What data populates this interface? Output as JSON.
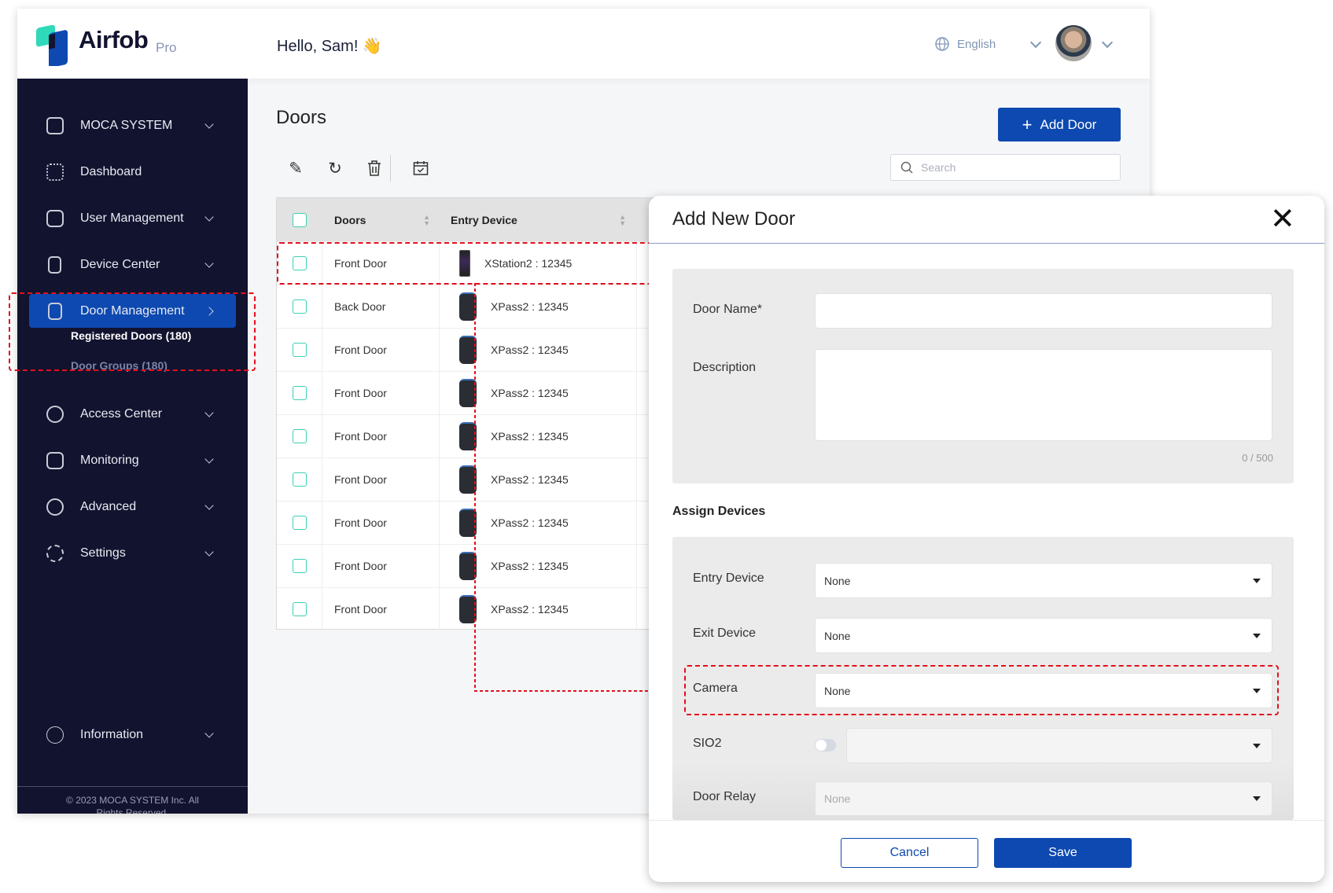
{
  "app": {
    "brand": "Airfob",
    "brand_tier": "Pro",
    "greeting": "Hello, Sam! 👋"
  },
  "header": {
    "language": "English",
    "icons": [
      "globe-icon",
      "chevron-down-icon",
      "avatar",
      "chevron-down-icon"
    ]
  },
  "sidebar": {
    "items": [
      {
        "label": "MOCA SYSTEM",
        "icon": "building-icon",
        "expandable": true
      },
      {
        "label": "Dashboard",
        "icon": "grid-icon",
        "expandable": false
      },
      {
        "label": "User Management",
        "icon": "user-icon",
        "expandable": true
      },
      {
        "label": "Device Center",
        "icon": "device-icon",
        "expandable": true
      },
      {
        "label": "Door Management",
        "icon": "door-icon",
        "active": true
      },
      {
        "label": "Access Center",
        "icon": "key-icon",
        "expandable": true
      },
      {
        "label": "Monitoring",
        "icon": "monitor-user-icon",
        "expandable": true
      },
      {
        "label": "Advanced",
        "icon": "advanced-icon",
        "expandable": true
      },
      {
        "label": "Settings",
        "icon": "gear-icon",
        "expandable": true
      },
      {
        "label": "Information",
        "icon": "info-icon",
        "expandable": true
      }
    ],
    "subitems": [
      {
        "label": "Registered Doors  (180)",
        "active": true
      },
      {
        "label": "Door Groups  (180)",
        "active": false
      }
    ],
    "copyright_line1": "© 2023 MOCA SYSTEM Inc. All",
    "copyright_line2": "Rights Reserved."
  },
  "main": {
    "title": "Doors",
    "add_button": "Add Door",
    "search_placeholder": "Search",
    "toolbar": [
      "edit-icon",
      "refresh-icon",
      "trash-icon",
      "calendar-check-icon"
    ],
    "table": {
      "columns": [
        "Doors",
        "Entry Device"
      ],
      "rows": [
        {
          "door": "Front Door",
          "device": "XStation2 : 12345",
          "type": "xstation"
        },
        {
          "door": "Back Door",
          "device": "XPass2 : 12345",
          "type": "xpass"
        },
        {
          "door": "Front Door",
          "device": "XPass2 : 12345",
          "type": "xpass"
        },
        {
          "door": "Front Door",
          "device": "XPass2 : 12345",
          "type": "xpass"
        },
        {
          "door": "Front Door",
          "device": "XPass2 : 12345",
          "type": "xpass"
        },
        {
          "door": "Front Door",
          "device": "XPass2 : 12345",
          "type": "xpass"
        },
        {
          "door": "Front Door",
          "device": "XPass2 : 12345",
          "type": "xpass"
        },
        {
          "door": "Front Door",
          "device": "XPass2 : 12345",
          "type": "xpass"
        },
        {
          "door": "Front Door",
          "device": "XPass2 : 12345",
          "type": "xpass"
        }
      ]
    }
  },
  "modal": {
    "title": "Add New Door",
    "door_name_label": "Door Name*",
    "door_name_value": "",
    "description_label": "Description",
    "description_value": "",
    "char_counter": "0 / 500",
    "assign_heading": "Assign Devices",
    "entry_label": "Entry Device",
    "entry_value": "None",
    "exit_label": "Exit Device",
    "exit_value": "None",
    "camera_label": "Camera",
    "camera_value": "None",
    "sio2_label": "SIO2",
    "sio2_enabled": false,
    "sio2_value": "",
    "relay_label": "Door Relay",
    "relay_value": "None",
    "cancel": "Cancel",
    "save": "Save"
  },
  "colors": {
    "sidebar": "#12132f",
    "primary": "#0d49b0",
    "accent": "#3ccfb4",
    "highlight": "#e4101c"
  }
}
